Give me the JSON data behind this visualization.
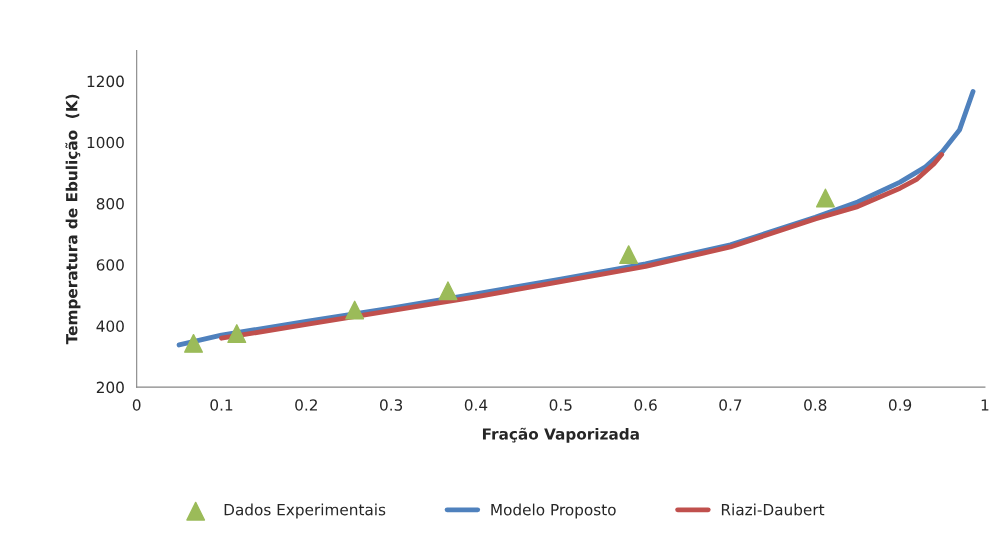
{
  "chart_data": {
    "type": "line",
    "xlabel": "Fração Vaporizada",
    "ylabel": "Temperatura de Ebulição  (K)",
    "xlim": [
      0,
      1
    ],
    "xticks": [
      0,
      0.1,
      0.2,
      0.3,
      0.4,
      0.5,
      0.6,
      0.7,
      0.8,
      0.9,
      1
    ],
    "ylim": [
      200,
      1300
    ],
    "yticks": [
      200,
      400,
      600,
      800,
      1000,
      1200
    ],
    "grid": false,
    "legend": "bottom",
    "series": [
      {
        "name": "Dados Experimentais",
        "type": "scatter",
        "marker": "triangle",
        "color": "#9bbb59",
        "x": [
          0.067,
          0.118,
          0.257,
          0.367,
          0.58,
          0.812
        ],
        "values": [
          343,
          375,
          452,
          515,
          633,
          818
        ]
      },
      {
        "name": "Modelo Proposto",
        "type": "line",
        "color": "#4f81bd",
        "x": [
          0.05,
          0.1,
          0.2,
          0.3,
          0.4,
          0.5,
          0.6,
          0.7,
          0.8,
          0.85,
          0.9,
          0.93,
          0.95,
          0.97,
          0.986
        ],
        "values": [
          338,
          370,
          415,
          458,
          505,
          553,
          603,
          665,
          755,
          805,
          870,
          920,
          970,
          1040,
          1166
        ]
      },
      {
        "name": "Riazi-Daubert",
        "type": "line",
        "color": "#c0504d",
        "x": [
          0.1,
          0.2,
          0.3,
          0.4,
          0.5,
          0.6,
          0.7,
          0.8,
          0.85,
          0.9,
          0.92,
          0.94,
          0.949
        ],
        "values": [
          360,
          405,
          450,
          495,
          545,
          595,
          658,
          750,
          790,
          850,
          880,
          930,
          960
        ]
      }
    ]
  }
}
